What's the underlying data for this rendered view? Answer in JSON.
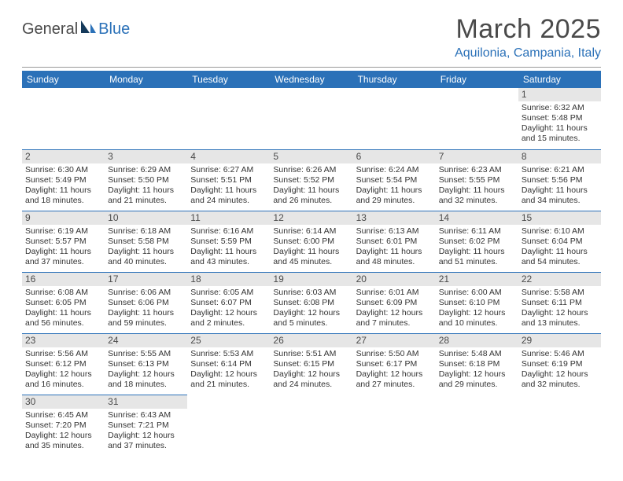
{
  "logo": {
    "part1": "General",
    "part2": "Blue"
  },
  "title": "March 2025",
  "subtitle": "Aquilonia, Campania, Italy",
  "colors": {
    "header_bg": "#2b71b8",
    "header_fg": "#ffffff",
    "daynum_bg": "#e6e6e6",
    "border": "#2b71b8",
    "text": "#333333",
    "title": "#4a4a4a"
  },
  "typography": {
    "title_size_pt": 26,
    "subtitle_size_pt": 12,
    "cell_size_pt": 8,
    "header_size_pt": 9
  },
  "weekdays": [
    "Sunday",
    "Monday",
    "Tuesday",
    "Wednesday",
    "Thursday",
    "Friday",
    "Saturday"
  ],
  "weeks": [
    [
      null,
      null,
      null,
      null,
      null,
      null,
      {
        "n": "1",
        "sunrise": "Sunrise: 6:32 AM",
        "sunset": "Sunset: 5:48 PM",
        "daylight": "Daylight: 11 hours and 15 minutes."
      }
    ],
    [
      {
        "n": "2",
        "sunrise": "Sunrise: 6:30 AM",
        "sunset": "Sunset: 5:49 PM",
        "daylight": "Daylight: 11 hours and 18 minutes."
      },
      {
        "n": "3",
        "sunrise": "Sunrise: 6:29 AM",
        "sunset": "Sunset: 5:50 PM",
        "daylight": "Daylight: 11 hours and 21 minutes."
      },
      {
        "n": "4",
        "sunrise": "Sunrise: 6:27 AM",
        "sunset": "Sunset: 5:51 PM",
        "daylight": "Daylight: 11 hours and 24 minutes."
      },
      {
        "n": "5",
        "sunrise": "Sunrise: 6:26 AM",
        "sunset": "Sunset: 5:52 PM",
        "daylight": "Daylight: 11 hours and 26 minutes."
      },
      {
        "n": "6",
        "sunrise": "Sunrise: 6:24 AM",
        "sunset": "Sunset: 5:54 PM",
        "daylight": "Daylight: 11 hours and 29 minutes."
      },
      {
        "n": "7",
        "sunrise": "Sunrise: 6:23 AM",
        "sunset": "Sunset: 5:55 PM",
        "daylight": "Daylight: 11 hours and 32 minutes."
      },
      {
        "n": "8",
        "sunrise": "Sunrise: 6:21 AM",
        "sunset": "Sunset: 5:56 PM",
        "daylight": "Daylight: 11 hours and 34 minutes."
      }
    ],
    [
      {
        "n": "9",
        "sunrise": "Sunrise: 6:19 AM",
        "sunset": "Sunset: 5:57 PM",
        "daylight": "Daylight: 11 hours and 37 minutes."
      },
      {
        "n": "10",
        "sunrise": "Sunrise: 6:18 AM",
        "sunset": "Sunset: 5:58 PM",
        "daylight": "Daylight: 11 hours and 40 minutes."
      },
      {
        "n": "11",
        "sunrise": "Sunrise: 6:16 AM",
        "sunset": "Sunset: 5:59 PM",
        "daylight": "Daylight: 11 hours and 43 minutes."
      },
      {
        "n": "12",
        "sunrise": "Sunrise: 6:14 AM",
        "sunset": "Sunset: 6:00 PM",
        "daylight": "Daylight: 11 hours and 45 minutes."
      },
      {
        "n": "13",
        "sunrise": "Sunrise: 6:13 AM",
        "sunset": "Sunset: 6:01 PM",
        "daylight": "Daylight: 11 hours and 48 minutes."
      },
      {
        "n": "14",
        "sunrise": "Sunrise: 6:11 AM",
        "sunset": "Sunset: 6:02 PM",
        "daylight": "Daylight: 11 hours and 51 minutes."
      },
      {
        "n": "15",
        "sunrise": "Sunrise: 6:10 AM",
        "sunset": "Sunset: 6:04 PM",
        "daylight": "Daylight: 11 hours and 54 minutes."
      }
    ],
    [
      {
        "n": "16",
        "sunrise": "Sunrise: 6:08 AM",
        "sunset": "Sunset: 6:05 PM",
        "daylight": "Daylight: 11 hours and 56 minutes."
      },
      {
        "n": "17",
        "sunrise": "Sunrise: 6:06 AM",
        "sunset": "Sunset: 6:06 PM",
        "daylight": "Daylight: 11 hours and 59 minutes."
      },
      {
        "n": "18",
        "sunrise": "Sunrise: 6:05 AM",
        "sunset": "Sunset: 6:07 PM",
        "daylight": "Daylight: 12 hours and 2 minutes."
      },
      {
        "n": "19",
        "sunrise": "Sunrise: 6:03 AM",
        "sunset": "Sunset: 6:08 PM",
        "daylight": "Daylight: 12 hours and 5 minutes."
      },
      {
        "n": "20",
        "sunrise": "Sunrise: 6:01 AM",
        "sunset": "Sunset: 6:09 PM",
        "daylight": "Daylight: 12 hours and 7 minutes."
      },
      {
        "n": "21",
        "sunrise": "Sunrise: 6:00 AM",
        "sunset": "Sunset: 6:10 PM",
        "daylight": "Daylight: 12 hours and 10 minutes."
      },
      {
        "n": "22",
        "sunrise": "Sunrise: 5:58 AM",
        "sunset": "Sunset: 6:11 PM",
        "daylight": "Daylight: 12 hours and 13 minutes."
      }
    ],
    [
      {
        "n": "23",
        "sunrise": "Sunrise: 5:56 AM",
        "sunset": "Sunset: 6:12 PM",
        "daylight": "Daylight: 12 hours and 16 minutes."
      },
      {
        "n": "24",
        "sunrise": "Sunrise: 5:55 AM",
        "sunset": "Sunset: 6:13 PM",
        "daylight": "Daylight: 12 hours and 18 minutes."
      },
      {
        "n": "25",
        "sunrise": "Sunrise: 5:53 AM",
        "sunset": "Sunset: 6:14 PM",
        "daylight": "Daylight: 12 hours and 21 minutes."
      },
      {
        "n": "26",
        "sunrise": "Sunrise: 5:51 AM",
        "sunset": "Sunset: 6:15 PM",
        "daylight": "Daylight: 12 hours and 24 minutes."
      },
      {
        "n": "27",
        "sunrise": "Sunrise: 5:50 AM",
        "sunset": "Sunset: 6:17 PM",
        "daylight": "Daylight: 12 hours and 27 minutes."
      },
      {
        "n": "28",
        "sunrise": "Sunrise: 5:48 AM",
        "sunset": "Sunset: 6:18 PM",
        "daylight": "Daylight: 12 hours and 29 minutes."
      },
      {
        "n": "29",
        "sunrise": "Sunrise: 5:46 AM",
        "sunset": "Sunset: 6:19 PM",
        "daylight": "Daylight: 12 hours and 32 minutes."
      }
    ],
    [
      {
        "n": "30",
        "sunrise": "Sunrise: 6:45 AM",
        "sunset": "Sunset: 7:20 PM",
        "daylight": "Daylight: 12 hours and 35 minutes."
      },
      {
        "n": "31",
        "sunrise": "Sunrise: 6:43 AM",
        "sunset": "Sunset: 7:21 PM",
        "daylight": "Daylight: 12 hours and 37 minutes."
      },
      null,
      null,
      null,
      null,
      null
    ]
  ]
}
